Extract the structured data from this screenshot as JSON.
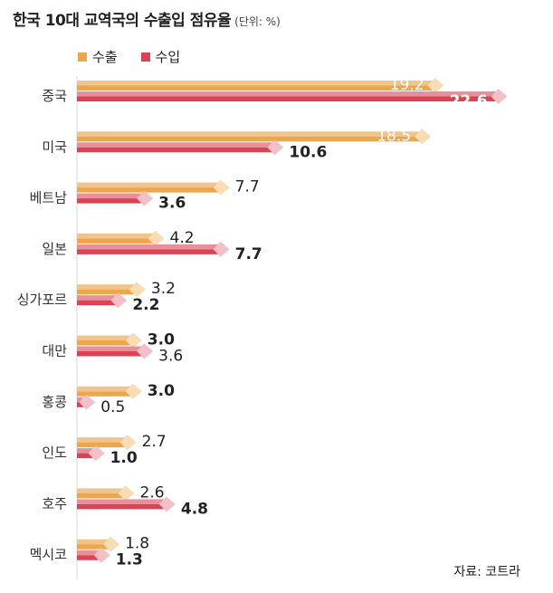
{
  "title": "한국 10대 교역국의 수출입 점유율",
  "unit": "(단위: %)",
  "source": "자료: 코트라",
  "colors": {
    "export_dark": "#EEA64A",
    "export_light": "#F0C48A",
    "export_tip": "#F7DCB4",
    "import_dark": "#DA4356",
    "import_light": "#E8909A",
    "import_tip": "#F2C0C6"
  },
  "chart_data": {
    "type": "bar",
    "orientation": "horizontal",
    "categories": [
      "중국",
      "미국",
      "베트남",
      "일본",
      "싱가포르",
      "대만",
      "홍콩",
      "인도",
      "호주",
      "멕시코"
    ],
    "series": [
      {
        "name": "수출",
        "values": [
          19.2,
          18.5,
          7.7,
          4.2,
          3.2,
          3.0,
          3.0,
          2.7,
          2.6,
          1.8
        ]
      },
      {
        "name": "수입",
        "values": [
          22.6,
          10.6,
          3.6,
          7.7,
          2.2,
          3.6,
          0.5,
          1.0,
          4.8,
          1.3
        ]
      }
    ],
    "label_texts": {
      "수출": [
        "19.2",
        "18.5",
        "7.7",
        "4.2",
        "3.2",
        "3.0",
        "3.0",
        "2.7",
        "2.6",
        "1.8"
      ],
      "수입": [
        "22.6",
        "10.6",
        "3.6",
        "7.7",
        "2.2",
        "3.6",
        "0.5",
        "1.0",
        "4.8",
        "1.3"
      ]
    },
    "highlight": [
      "import",
      "import",
      "import",
      "import",
      "import",
      "export",
      "export",
      "import",
      "import",
      "import"
    ],
    "legend_position": "top-left",
    "grid": false
  }
}
